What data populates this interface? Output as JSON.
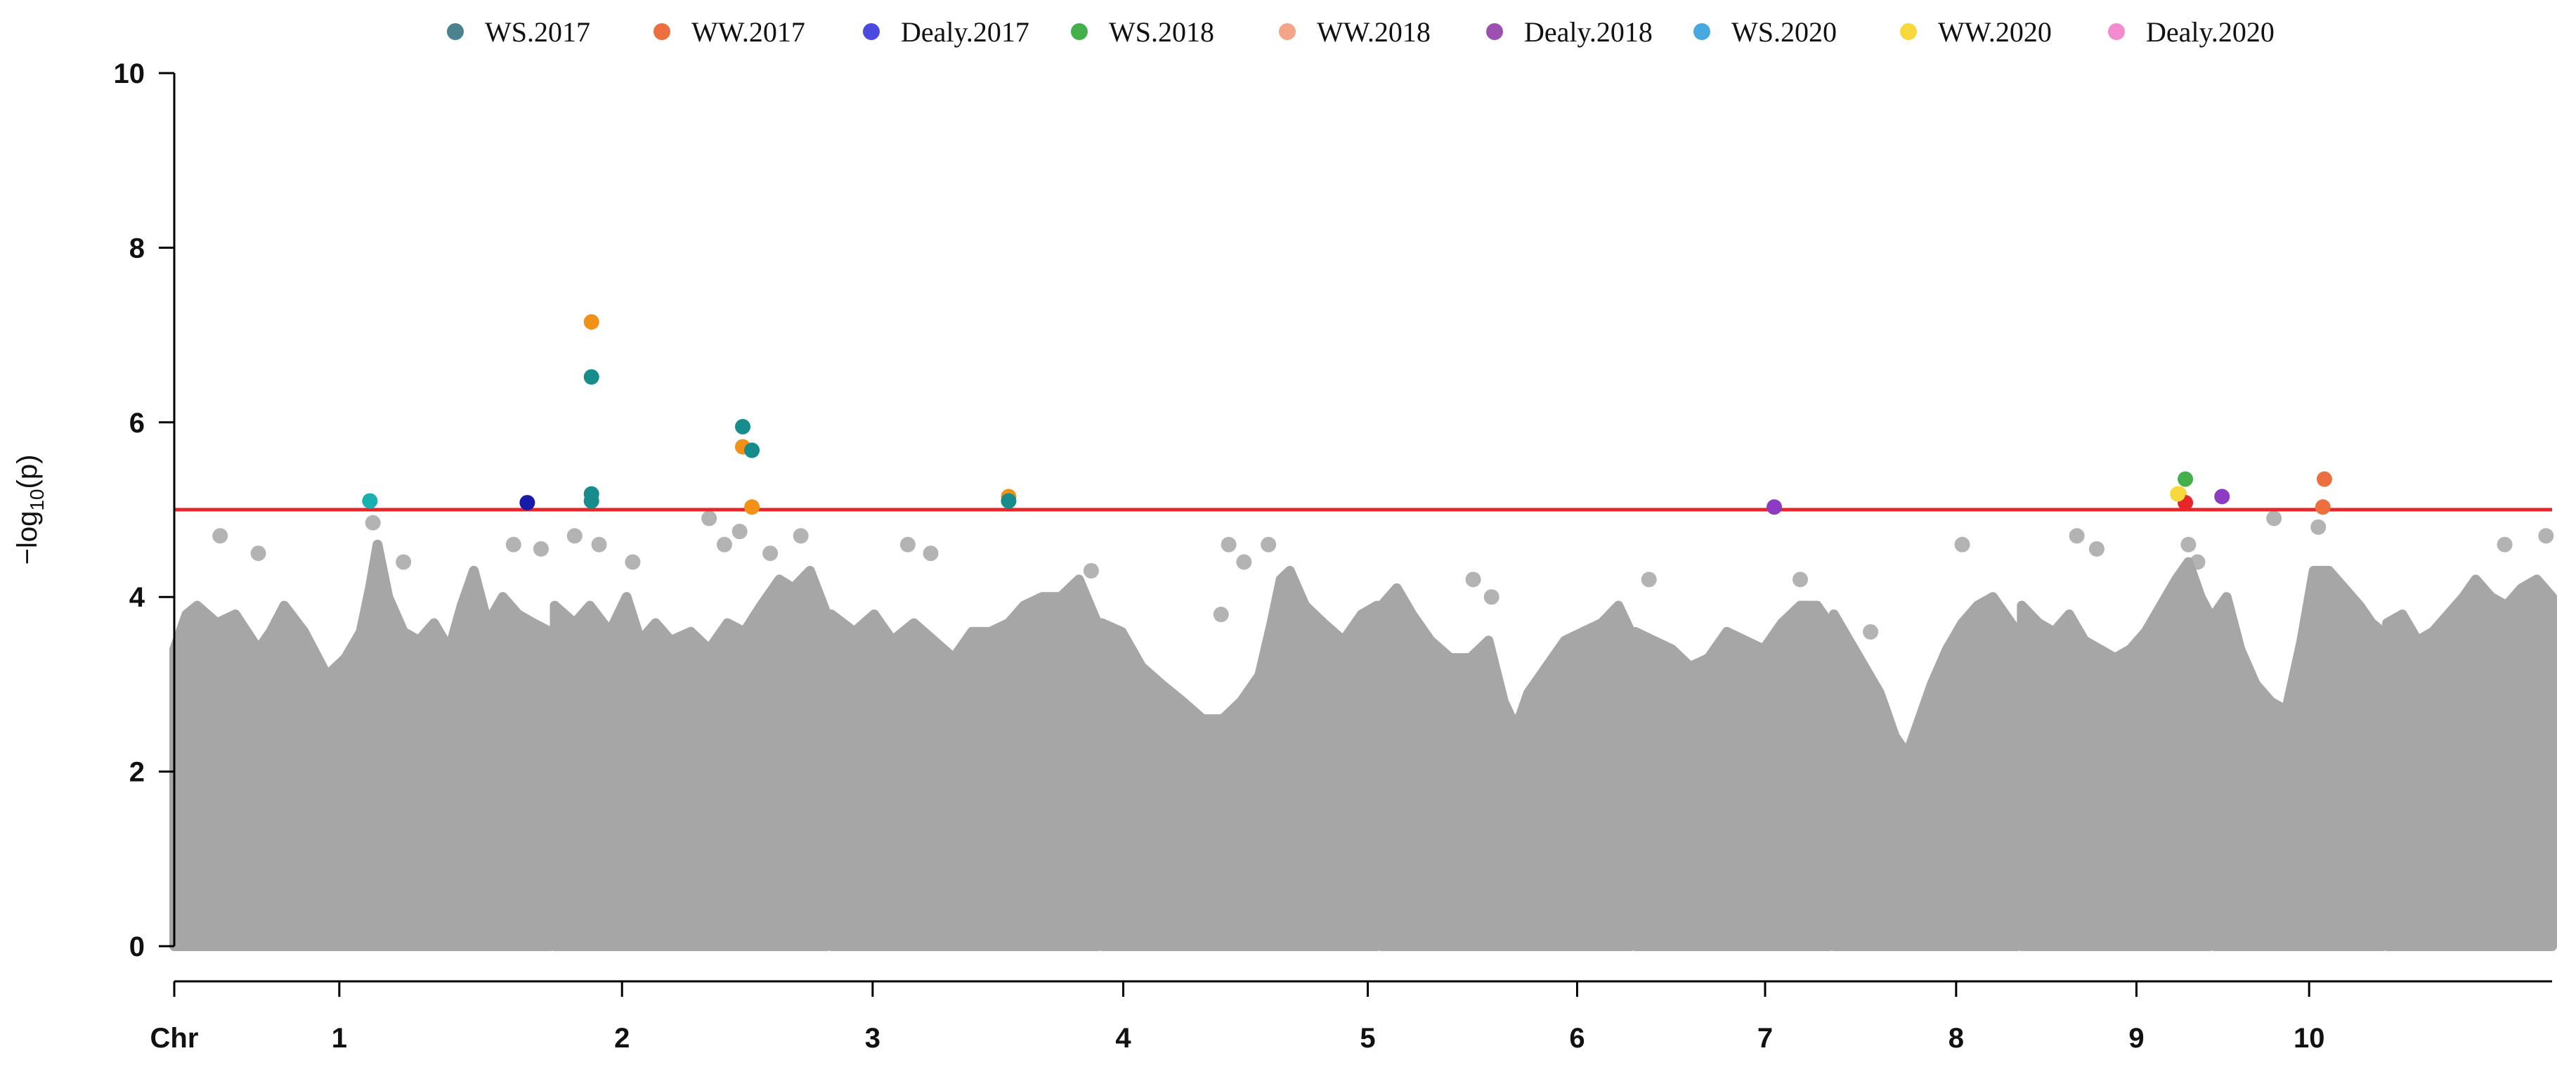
{
  "chart_data": {
    "type": "scatter",
    "subtype": "manhattan",
    "ylabel": "-log10(p)",
    "xlabel_prefix": "Chr",
    "ylim": [
      0,
      10
    ],
    "yticks": [
      0,
      2,
      4,
      6,
      8,
      10
    ],
    "threshold": 5.0,
    "threshold_color": "#e8262a",
    "background_color": "#a6a6a6",
    "legend_position": "top",
    "chromosomes": [
      {
        "label": "1",
        "start": 0,
        "end": 246,
        "peaks": [
          [
            0,
            3.4
          ],
          [
            8,
            3.8
          ],
          [
            15,
            3.9
          ],
          [
            28,
            3.7
          ],
          [
            40,
            3.8
          ],
          [
            55,
            3.4
          ],
          [
            63,
            3.6
          ],
          [
            72,
            3.9
          ],
          [
            85,
            3.6
          ],
          [
            100,
            3.1
          ],
          [
            112,
            3.3
          ],
          [
            122,
            3.6
          ],
          [
            128,
            4.1
          ],
          [
            133,
            4.6
          ],
          [
            140,
            4.0
          ],
          [
            150,
            3.6
          ],
          [
            160,
            3.5
          ],
          [
            170,
            3.7
          ],
          [
            180,
            3.4
          ],
          [
            188,
            3.9
          ],
          [
            196,
            4.3
          ],
          [
            205,
            3.7
          ],
          [
            215,
            4.0
          ],
          [
            225,
            3.8
          ],
          [
            235,
            3.7
          ],
          [
            246,
            3.6
          ]
        ]
      },
      {
        "label": "2",
        "start": 249,
        "end": 427,
        "peaks": [
          [
            249,
            3.9
          ],
          [
            262,
            3.7
          ],
          [
            272,
            3.9
          ],
          [
            285,
            3.6
          ],
          [
            296,
            4.0
          ],
          [
            305,
            3.5
          ],
          [
            315,
            3.7
          ],
          [
            325,
            3.5
          ],
          [
            338,
            3.6
          ],
          [
            350,
            3.4
          ],
          [
            362,
            3.7
          ],
          [
            373,
            3.6
          ],
          [
            384,
            3.9
          ],
          [
            396,
            4.2
          ],
          [
            405,
            4.1
          ],
          [
            416,
            4.3
          ],
          [
            427,
            3.8
          ]
        ]
      },
      {
        "label": "3",
        "start": 430,
        "end": 604,
        "peaks": [
          [
            430,
            3.8
          ],
          [
            445,
            3.6
          ],
          [
            458,
            3.8
          ],
          [
            470,
            3.5
          ],
          [
            484,
            3.7
          ],
          [
            497,
            3.5
          ],
          [
            510,
            3.3
          ],
          [
            522,
            3.6
          ],
          [
            534,
            3.6
          ],
          [
            546,
            3.7
          ],
          [
            556,
            3.9
          ],
          [
            568,
            4.0
          ],
          [
            580,
            4.0
          ],
          [
            592,
            4.2
          ],
          [
            604,
            3.7
          ]
        ]
      },
      {
        "label": "4",
        "start": 607,
        "end": 787,
        "peaks": [
          [
            607,
            3.7
          ],
          [
            620,
            3.6
          ],
          [
            633,
            3.2
          ],
          [
            646,
            3.0
          ],
          [
            660,
            2.8
          ],
          [
            673,
            2.6
          ],
          [
            686,
            2.6
          ],
          [
            698,
            2.8
          ],
          [
            710,
            3.1
          ],
          [
            718,
            3.7
          ],
          [
            724,
            4.2
          ],
          [
            730,
            4.3
          ],
          [
            740,
            3.9
          ],
          [
            752,
            3.7
          ],
          [
            765,
            3.5
          ],
          [
            777,
            3.8
          ],
          [
            787,
            3.9
          ]
        ]
      },
      {
        "label": "5",
        "start": 790,
        "end": 953,
        "peaks": [
          [
            790,
            3.9
          ],
          [
            800,
            4.1
          ],
          [
            810,
            3.8
          ],
          [
            822,
            3.5
          ],
          [
            835,
            3.3
          ],
          [
            848,
            3.3
          ],
          [
            860,
            3.5
          ],
          [
            870,
            2.8
          ],
          [
            878,
            2.5
          ],
          [
            886,
            2.9
          ],
          [
            898,
            3.2
          ],
          [
            910,
            3.5
          ],
          [
            922,
            3.6
          ],
          [
            934,
            3.7
          ],
          [
            945,
            3.9
          ],
          [
            953,
            3.6
          ]
        ]
      },
      {
        "label": "6",
        "start": 956,
        "end": 1083,
        "peaks": [
          [
            956,
            3.6
          ],
          [
            968,
            3.5
          ],
          [
            980,
            3.4
          ],
          [
            992,
            3.2
          ],
          [
            1004,
            3.3
          ],
          [
            1016,
            3.6
          ],
          [
            1028,
            3.5
          ],
          [
            1040,
            3.4
          ],
          [
            1052,
            3.7
          ],
          [
            1064,
            3.9
          ],
          [
            1075,
            3.9
          ],
          [
            1083,
            3.7
          ]
        ]
      },
      {
        "label": "7",
        "start": 1086,
        "end": 1206,
        "peaks": [
          [
            1086,
            3.8
          ],
          [
            1096,
            3.5
          ],
          [
            1106,
            3.2
          ],
          [
            1116,
            2.9
          ],
          [
            1126,
            2.4
          ],
          [
            1134,
            2.2
          ],
          [
            1142,
            2.6
          ],
          [
            1150,
            3.0
          ],
          [
            1160,
            3.4
          ],
          [
            1170,
            3.7
          ],
          [
            1180,
            3.9
          ],
          [
            1190,
            4.0
          ],
          [
            1198,
            3.8
          ],
          [
            1206,
            3.6
          ]
        ]
      },
      {
        "label": "8",
        "start": 1209,
        "end": 1332,
        "peaks": [
          [
            1209,
            3.9
          ],
          [
            1220,
            3.7
          ],
          [
            1230,
            3.6
          ],
          [
            1240,
            3.8
          ],
          [
            1250,
            3.5
          ],
          [
            1260,
            3.4
          ],
          [
            1270,
            3.3
          ],
          [
            1280,
            3.4
          ],
          [
            1290,
            3.6
          ],
          [
            1300,
            3.9
          ],
          [
            1310,
            4.2
          ],
          [
            1318,
            4.4
          ],
          [
            1326,
            4.0
          ],
          [
            1332,
            3.8
          ]
        ]
      },
      {
        "label": "9",
        "start": 1335,
        "end": 1445,
        "peaks": [
          [
            1335,
            3.8
          ],
          [
            1343,
            4.0
          ],
          [
            1352,
            3.4
          ],
          [
            1362,
            3.0
          ],
          [
            1372,
            2.8
          ],
          [
            1382,
            2.7
          ],
          [
            1392,
            3.5
          ],
          [
            1400,
            4.3
          ],
          [
            1410,
            4.3
          ],
          [
            1420,
            4.1
          ],
          [
            1430,
            3.9
          ],
          [
            1438,
            3.7
          ],
          [
            1445,
            3.6
          ]
        ]
      },
      {
        "label": "10",
        "start": 1448,
        "end": 1556,
        "peaks": [
          [
            1448,
            3.7
          ],
          [
            1458,
            3.8
          ],
          [
            1468,
            3.5
          ],
          [
            1478,
            3.6
          ],
          [
            1488,
            3.8
          ],
          [
            1498,
            4.0
          ],
          [
            1506,
            4.2
          ],
          [
            1516,
            4.0
          ],
          [
            1526,
            3.9
          ],
          [
            1536,
            4.1
          ],
          [
            1546,
            4.2
          ],
          [
            1556,
            4.0
          ]
        ]
      }
    ],
    "xticks": [
      {
        "label": "1",
        "pos": 108
      },
      {
        "label": "2",
        "pos": 293
      },
      {
        "label": "3",
        "pos": 457
      },
      {
        "label": "4",
        "pos": 621
      },
      {
        "label": "5",
        "pos": 781
      },
      {
        "label": "6",
        "pos": 918
      },
      {
        "label": "7",
        "pos": 1041
      },
      {
        "label": "8",
        "pos": 1166
      },
      {
        "label": "9",
        "pos": 1284
      },
      {
        "label": "10",
        "pos": 1397
      }
    ],
    "xlim": [
      0,
      1556
    ],
    "outliers": [
      [
        30,
        4.7
      ],
      [
        55,
        4.5
      ],
      [
        130,
        4.85
      ],
      [
        150,
        4.4
      ],
      [
        222,
        4.6
      ],
      [
        240,
        4.55
      ],
      [
        262,
        4.7
      ],
      [
        278,
        4.6
      ],
      [
        300,
        4.4
      ],
      [
        350,
        4.9
      ],
      [
        360,
        4.6
      ],
      [
        370,
        4.75
      ],
      [
        390,
        4.5
      ],
      [
        410,
        4.7
      ],
      [
        480,
        4.6
      ],
      [
        495,
        4.5
      ],
      [
        600,
        4.3
      ],
      [
        685,
        3.8
      ],
      [
        690,
        4.6
      ],
      [
        700,
        4.4
      ],
      [
        716,
        4.6
      ],
      [
        850,
        4.2
      ],
      [
        862,
        4.0
      ],
      [
        965,
        4.2
      ],
      [
        1064,
        4.2
      ],
      [
        1110,
        3.6
      ],
      [
        1170,
        4.6
      ],
      [
        1245,
        4.7
      ],
      [
        1258,
        4.55
      ],
      [
        1318,
        4.6
      ],
      [
        1324,
        4.4
      ],
      [
        1374,
        4.9
      ],
      [
        1403,
        4.8
      ],
      [
        1525,
        4.6
      ],
      [
        1552,
        4.7
      ]
    ],
    "series": [
      {
        "name": "WS.2017",
        "legend_color": "#4a8290",
        "points": []
      },
      {
        "name": "WW.2017",
        "legend_color": "#ec6f3f",
        "points": [
          [
            1407,
            5.35
          ],
          [
            1406,
            5.03
          ]
        ]
      },
      {
        "name": "Dealy.2017",
        "legend_color": "#4a4ae0",
        "points": []
      },
      {
        "name": "WS.2018",
        "legend_color": "#43b04b",
        "points": [
          [
            1316,
            5.35
          ]
        ]
      },
      {
        "name": "WW.2018",
        "legend_color": "#f4a488",
        "points": []
      },
      {
        "name": "Dealy.2018",
        "legend_color": "#9c50b0",
        "points": []
      },
      {
        "name": "WS.2020",
        "legend_color": "#48a8e0",
        "points": []
      },
      {
        "name": "WW.2020",
        "legend_color": "#f7d93d",
        "points": [
          [
            1311,
            5.18
          ]
        ]
      },
      {
        "name": "Dealy.2020",
        "legend_color": "#f48ad0",
        "points": []
      }
    ],
    "highlight_points": [
      {
        "x": 128,
        "y": 5.1,
        "color": "#1ab0b0"
      },
      {
        "x": 231,
        "y": 5.08,
        "color": "#1a1aa8"
      },
      {
        "x": 273,
        "y": 7.15,
        "color": "#f29118"
      },
      {
        "x": 273,
        "y": 6.52,
        "color": "#178c8c"
      },
      {
        "x": 273,
        "y": 5.18,
        "color": "#178c8c"
      },
      {
        "x": 273,
        "y": 5.1,
        "color": "#178c8c"
      },
      {
        "x": 372,
        "y": 5.95,
        "color": "#178c8c"
      },
      {
        "x": 372,
        "y": 5.72,
        "color": "#f29118"
      },
      {
        "x": 378,
        "y": 5.68,
        "color": "#178c8c"
      },
      {
        "x": 378,
        "y": 5.03,
        "color": "#f29118"
      },
      {
        "x": 546,
        "y": 5.15,
        "color": "#f29118"
      },
      {
        "x": 546,
        "y": 5.1,
        "color": "#178c8c"
      },
      {
        "x": 1047,
        "y": 5.03,
        "color": "#8c3cc0"
      },
      {
        "x": 1312,
        "y": 5.18,
        "color": "#f7d93d"
      },
      {
        "x": 1316,
        "y": 5.08,
        "color": "#e8262a"
      },
      {
        "x": 1340,
        "y": 5.15,
        "color": "#8c3cc0"
      }
    ]
  }
}
